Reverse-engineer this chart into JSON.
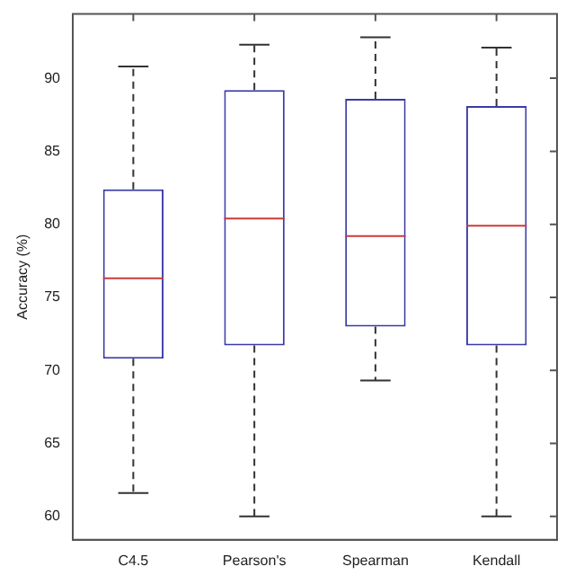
{
  "chart_data": {
    "type": "box",
    "ylabel": "Accuracy (%)",
    "categories": [
      "C4.5",
      "Pearson's",
      "Spearman",
      "Kendall"
    ],
    "boxes": [
      {
        "low": 61.6,
        "q1": 70.8,
        "median": 76.3,
        "q3": 82.4,
        "high": 90.8
      },
      {
        "low": 60,
        "q1": 71.7,
        "median": 80.4,
        "q3": 89.2,
        "high": 92.3
      },
      {
        "low": 69.3,
        "q1": 73.0,
        "median": 79.2,
        "q3": 88.6,
        "high": 92.8
      },
      {
        "low": 60,
        "q1": 71.7,
        "median": 79.9,
        "q3": 88.1,
        "high": 92.1
      }
    ],
    "color": "#3a3aa8",
    "ylim": [
      58.4,
      94.4
    ],
    "yticks": [
      60,
      65,
      70,
      75,
      80,
      85,
      90
    ],
    "grid": false,
    "legend": false,
    "line_style": "dashed"
  }
}
